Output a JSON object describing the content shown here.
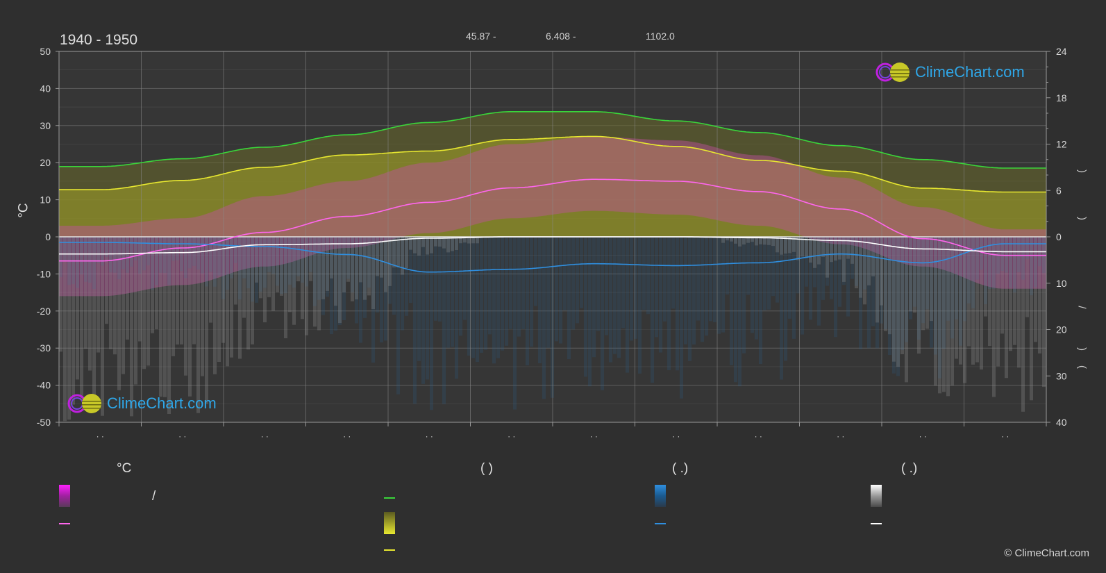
{
  "header": {
    "title": "1940 - 1950",
    "stat_1": "45.87 -",
    "stat_2": "6.408 -",
    "stat_3": "1102.0"
  },
  "axes": {
    "left_unit": "°C",
    "left_ticks": [
      "50",
      "40",
      "30",
      "20",
      "10",
      "0",
      "-10",
      "-20",
      "-30",
      "-40",
      "-50"
    ],
    "right_ticks_top": [
      "24",
      "18",
      "12",
      "6",
      "0"
    ],
    "right_ticks_bottom": [
      "10",
      "20",
      "30",
      "40"
    ],
    "right_paren_1": ")",
    "right_paren_2": ")",
    "right_slash": "/",
    "right_paren_3": ")",
    "right_paren_4": "("
  },
  "month_labels": [
    "· ·",
    "· ·",
    "· ·",
    "· ·",
    "· ·",
    "· ·",
    "· ·",
    "· ·",
    "· ·",
    "· ·",
    "· ·",
    "· ·"
  ],
  "watermark": {
    "text": "ClimeChart.com"
  },
  "legend": {
    "col1_head": "°C",
    "col1_slash": "/",
    "col2_head": "(          )",
    "col3_head": "(    .)",
    "col4_head": "(    .)"
  },
  "copyright": "© ClimeChart.com",
  "colors": {
    "daylight": "#3ad63a",
    "sunshine": "#e8e830",
    "temp_mean": "#ff66ee",
    "rain": "#2f8fe0",
    "snow": "#ffffff",
    "temp_range": "#e020e0",
    "sun_fill": "#b8b820"
  },
  "chart_data": {
    "type": "area",
    "x": [
      "1",
      "2",
      "3",
      "4",
      "5",
      "6",
      "7",
      "8",
      "9",
      "10",
      "11",
      "12"
    ],
    "ylim_left": [
      -50,
      50
    ],
    "ylim_right_top": [
      0,
      24
    ],
    "ylim_right_bottom": [
      0,
      40
    ],
    "grid": true,
    "series": [
      {
        "name": "",
        "role": "daylight_hours",
        "axis": "right_top",
        "values": [
          9.1,
          10.1,
          11.6,
          13.2,
          14.8,
          16.2,
          16.2,
          15.0,
          13.5,
          11.8,
          10.0,
          8.9
        ]
      },
      {
        "name": "",
        "role": "sunshine_hours",
        "axis": "right_top",
        "values": [
          6.1,
          7.3,
          9.0,
          10.6,
          11.1,
          12.6,
          13.0,
          11.7,
          9.9,
          8.5,
          6.3,
          5.8
        ]
      },
      {
        "name": "",
        "role": "mean_temperature",
        "axis": "left",
        "values": [
          -6.5,
          -3.0,
          1.2,
          5.5,
          9.3,
          13.2,
          15.5,
          15.0,
          12.2,
          7.5,
          -0.5,
          -5.0
        ]
      },
      {
        "name": "",
        "role": "rain_mm_per_day",
        "axis": "right_bottom",
        "values": [
          1.2,
          1.5,
          2.1,
          3.8,
          7.6,
          7.0,
          5.8,
          6.2,
          5.6,
          3.7,
          5.6,
          1.5
        ]
      },
      {
        "name": "",
        "role": "snow_mm_per_day",
        "axis": "right_bottom",
        "values": [
          3.7,
          3.4,
          1.7,
          1.5,
          0.3,
          0.0,
          0.0,
          0.0,
          0.2,
          0.8,
          2.6,
          3.2
        ]
      }
    ],
    "temp_band": {
      "max_upper": [
        3,
        5,
        11,
        15,
        20,
        25,
        27,
        26,
        22,
        16,
        8,
        2
      ],
      "min_lower": [
        -16,
        -13,
        -8,
        -3,
        1,
        5,
        7,
        6,
        3,
        -2,
        -8,
        -14
      ]
    }
  }
}
